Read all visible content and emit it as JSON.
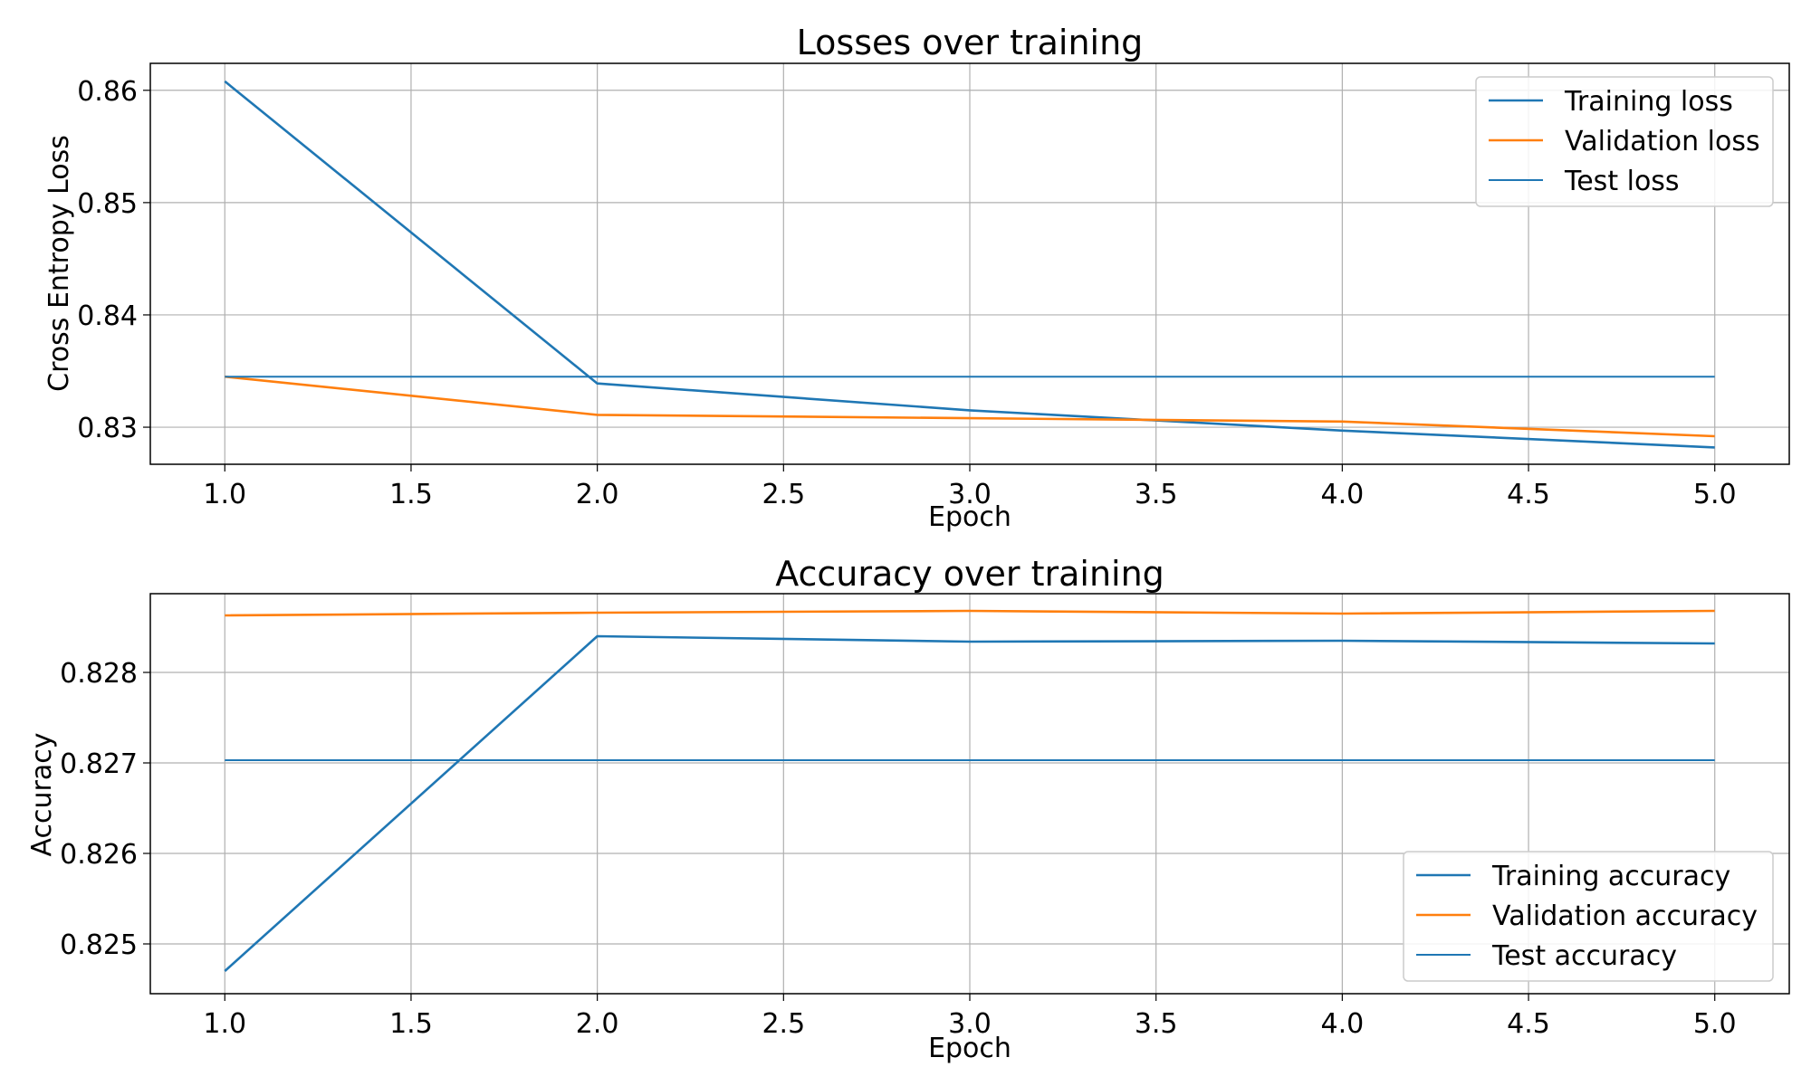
{
  "chart_data": [
    {
      "type": "line",
      "title": "Losses over training",
      "xlabel": "Epoch",
      "ylabel": "Cross Entropy Loss",
      "x": [
        1,
        2,
        3,
        4,
        5
      ],
      "xlim": [
        0.8,
        5.2
      ],
      "ylim": [
        0.8267,
        0.8624
      ],
      "xticks": [
        "1.0",
        "1.5",
        "2.0",
        "2.5",
        "3.0",
        "3.5",
        "4.0",
        "4.5",
        "5.0"
      ],
      "yticks": [
        "0.83",
        "0.84",
        "0.85",
        "0.86"
      ],
      "grid": true,
      "legend_position": "upper right",
      "series": [
        {
          "name": "Training loss",
          "color": "#1f77b4",
          "values": [
            0.8608,
            0.8339,
            0.8315,
            0.8297,
            0.8282
          ]
        },
        {
          "name": "Validation loss",
          "color": "#ff7f0e",
          "values": [
            0.8345,
            0.8311,
            0.8308,
            0.8305,
            0.8292
          ]
        },
        {
          "name": "Test loss",
          "color": "#1f77b4",
          "thin": true,
          "values": [
            0.8345,
            0.8345,
            0.8345,
            0.8345,
            0.8345
          ]
        }
      ]
    },
    {
      "type": "line",
      "title": "Accuracy over training",
      "xlabel": "Epoch",
      "ylabel": "Accuracy",
      "x": [
        1,
        2,
        3,
        4,
        5
      ],
      "xlim": [
        0.8,
        5.2
      ],
      "ylim": [
        0.82445,
        0.82887
      ],
      "xticks": [
        "1.0",
        "1.5",
        "2.0",
        "2.5",
        "3.0",
        "3.5",
        "4.0",
        "4.5",
        "5.0"
      ],
      "yticks": [
        "0.825",
        "0.826",
        "0.827",
        "0.828"
      ],
      "grid": true,
      "legend_position": "lower right",
      "series": [
        {
          "name": "Training accuracy",
          "color": "#1f77b4",
          "values": [
            0.8247,
            0.8284,
            0.82834,
            0.82835,
            0.82832
          ]
        },
        {
          "name": "Validation accuracy",
          "color": "#ff7f0e",
          "values": [
            0.82863,
            0.82866,
            0.82868,
            0.82865,
            0.82868
          ]
        },
        {
          "name": "Test accuracy",
          "color": "#1f77b4",
          "thin": true,
          "values": [
            0.82703,
            0.82703,
            0.82703,
            0.82703,
            0.82703
          ]
        }
      ]
    }
  ]
}
